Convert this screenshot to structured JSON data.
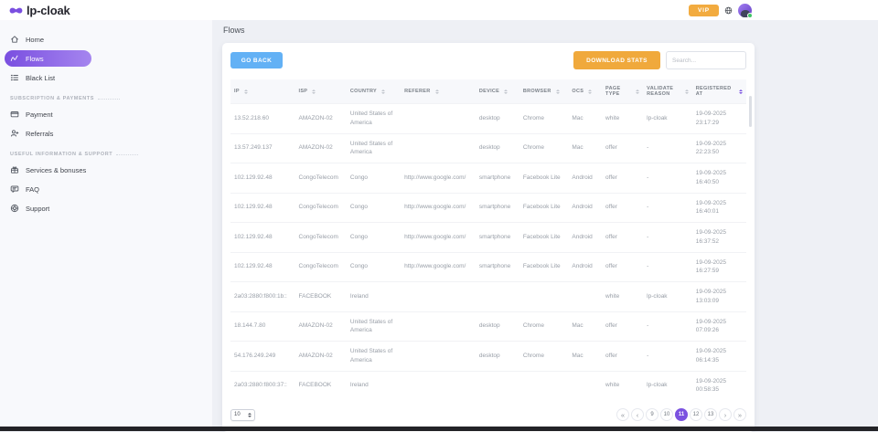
{
  "header": {
    "logo_text": "lp-cloak",
    "vip_label": "VIP"
  },
  "sidebar": {
    "sections": [
      {
        "title": "",
        "items": [
          {
            "id": "home",
            "icon": "home-icon",
            "label": "Home",
            "active": false
          },
          {
            "id": "flows",
            "icon": "flows-icon",
            "label": "Flows",
            "active": true
          },
          {
            "id": "black-list",
            "icon": "list-icon",
            "label": "Black List",
            "active": false
          }
        ]
      },
      {
        "title": "SUBSCRIPTION & PAYMENTS",
        "items": [
          {
            "id": "payment",
            "icon": "credit-card-icon",
            "label": "Payment",
            "active": false
          },
          {
            "id": "referrals",
            "icon": "referrals-icon",
            "label": "Referrals",
            "active": false
          }
        ]
      },
      {
        "title": "USEFUL INFORMATION & SUPPORT",
        "items": [
          {
            "id": "services-bonuses",
            "icon": "gift-icon",
            "label": "Services & bonuses",
            "active": false
          },
          {
            "id": "faq",
            "icon": "chat-icon",
            "label": "FAQ",
            "active": false
          },
          {
            "id": "support",
            "icon": "lifebuoy-icon",
            "label": "Support",
            "active": false
          }
        ]
      }
    ]
  },
  "main": {
    "page_title": "Flows",
    "toolbar": {
      "go_back_label": "GO BACK",
      "download_stats_label": "DOWNLOAD STATS",
      "search_placeholder": "Search..."
    },
    "table": {
      "columns": [
        "IP",
        "ISP",
        "COUNTRY",
        "REFERER",
        "DEVICE",
        "BROWSER",
        "OCS",
        "PAGE TYPE",
        "VALIDATE REASON",
        "REGISTERED AT"
      ],
      "sorted_column": "REGISTERED AT",
      "rows": [
        [
          "13.52.218.60",
          "AMAZON-02",
          "United States of America",
          "",
          "desktop",
          "Chrome",
          "Mac",
          "white",
          "lp-cloak",
          "19-09-2025 23:17:29"
        ],
        [
          "13.57.249.137",
          "AMAZON-02",
          "United States of America",
          "",
          "desktop",
          "Chrome",
          "Mac",
          "offer",
          "-",
          "19-09-2025 22:23:50"
        ],
        [
          "102.129.92.48",
          "CongoTelecom",
          "Congo",
          "http://www.google.com/",
          "smartphone",
          "Facebook Lite",
          "Android",
          "offer",
          "-",
          "19-09-2025 16:40:50"
        ],
        [
          "102.129.92.48",
          "CongoTelecom",
          "Congo",
          "http://www.google.com/",
          "smartphone",
          "Facebook Lite",
          "Android",
          "offer",
          "-",
          "19-09-2025 16:40:01"
        ],
        [
          "102.129.92.48",
          "CongoTelecom",
          "Congo",
          "http://www.google.com/",
          "smartphone",
          "Facebook Lite",
          "Android",
          "offer",
          "-",
          "19-09-2025 16:37:52"
        ],
        [
          "102.129.92.48",
          "CongoTelecom",
          "Congo",
          "http://www.google.com/",
          "smartphone",
          "Facebook Lite",
          "Android",
          "offer",
          "-",
          "19-09-2025 16:27:59"
        ],
        [
          "2a03:2880:f800:1b::",
          "FACEBOOK",
          "Ireland",
          "",
          "",
          "",
          "",
          "white",
          "lp-cloak",
          "19-09-2025 13:03:09"
        ],
        [
          "18.144.7.80",
          "AMAZON-02",
          "United States of America",
          "",
          "desktop",
          "Chrome",
          "Mac",
          "offer",
          "-",
          "19-09-2025 07:09:26"
        ],
        [
          "54.176.249.249",
          "AMAZON-02",
          "United States of America",
          "",
          "desktop",
          "Chrome",
          "Mac",
          "offer",
          "-",
          "19-09-2025 06:14:35"
        ],
        [
          "2a03:2880:f800:37::",
          "FACEBOOK",
          "Ireland",
          "",
          "",
          "",
          "",
          "white",
          "lp-cloak",
          "19-09-2025 00:58:35"
        ]
      ]
    },
    "pagination": {
      "page_size": "10",
      "first": "«",
      "prev": "‹",
      "next": "›",
      "last": "»",
      "pages": [
        "9",
        "10",
        "11",
        "12",
        "13"
      ],
      "active_page": "11"
    }
  },
  "colors": {
    "accent_purple": "#7b52e0",
    "accent_orange": "#f0a93c",
    "accent_blue": "#63b1f5",
    "online_green": "#3ec463"
  }
}
